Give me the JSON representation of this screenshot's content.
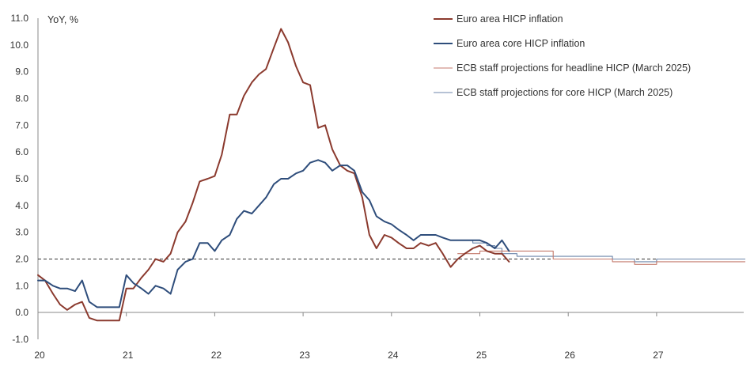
{
  "chart_data": {
    "type": "line",
    "ylabel": "YoY, %",
    "ylim": [
      -1.0,
      11.0
    ],
    "y_ticks": [
      "11.0",
      "10.0",
      "9.0",
      "8.0",
      "7.0",
      "6.0",
      "5.0",
      "4.0",
      "3.0",
      "2.0",
      "1.0",
      "0.0",
      "-1.0"
    ],
    "x_ticks": [
      "20",
      "21",
      "22",
      "23",
      "24",
      "25",
      "26",
      "27"
    ],
    "reference_line": {
      "value": 2.0,
      "style": "dashed"
    },
    "legend_position": "top-right",
    "series": [
      {
        "name": "Euro area HICP inflation",
        "color": "#8b3a2e",
        "x": [
          2020.0,
          2020.08,
          2020.17,
          2020.25,
          2020.33,
          2020.42,
          2020.5,
          2020.58,
          2020.67,
          2020.75,
          2020.83,
          2020.92,
          2021.0,
          2021.08,
          2021.17,
          2021.25,
          2021.33,
          2021.42,
          2021.5,
          2021.58,
          2021.67,
          2021.75,
          2021.83,
          2021.92,
          2022.0,
          2022.08,
          2022.17,
          2022.25,
          2022.33,
          2022.42,
          2022.5,
          2022.58,
          2022.67,
          2022.75,
          2022.83,
          2022.92,
          2023.0,
          2023.08,
          2023.17,
          2023.25,
          2023.33,
          2023.42,
          2023.5,
          2023.58,
          2023.67,
          2023.75,
          2023.83,
          2023.92,
          2024.0,
          2024.08,
          2024.17,
          2024.25,
          2024.33,
          2024.42,
          2024.5,
          2024.58,
          2024.67,
          2024.75,
          2024.83,
          2024.92,
          2025.0,
          2025.08,
          2025.17,
          2025.25,
          2025.33
        ],
        "values": [
          1.4,
          1.2,
          0.7,
          0.3,
          0.1,
          0.3,
          0.4,
          -0.2,
          -0.3,
          -0.3,
          -0.3,
          -0.3,
          0.9,
          0.9,
          1.3,
          1.6,
          2.0,
          1.9,
          2.2,
          3.0,
          3.4,
          4.1,
          4.9,
          5.0,
          5.1,
          5.9,
          7.4,
          7.4,
          8.1,
          8.6,
          8.9,
          9.1,
          9.9,
          10.6,
          10.1,
          9.2,
          8.6,
          8.5,
          6.9,
          7.0,
          6.1,
          5.5,
          5.3,
          5.2,
          4.3,
          2.9,
          2.4,
          2.9,
          2.8,
          2.6,
          2.4,
          2.4,
          2.6,
          2.5,
          2.6,
          2.2,
          1.7,
          2.0,
          2.2,
          2.4,
          2.5,
          2.3,
          2.2,
          2.2,
          1.9
        ]
      },
      {
        "name": "Euro area core HICP inflation",
        "color": "#2e4d7b",
        "x": [
          2020.0,
          2020.08,
          2020.17,
          2020.25,
          2020.33,
          2020.42,
          2020.5,
          2020.58,
          2020.67,
          2020.75,
          2020.83,
          2020.92,
          2021.0,
          2021.08,
          2021.17,
          2021.25,
          2021.33,
          2021.42,
          2021.5,
          2021.58,
          2021.67,
          2021.75,
          2021.83,
          2021.92,
          2022.0,
          2022.08,
          2022.17,
          2022.25,
          2022.33,
          2022.42,
          2022.5,
          2022.58,
          2022.67,
          2022.75,
          2022.83,
          2022.92,
          2023.0,
          2023.08,
          2023.17,
          2023.25,
          2023.33,
          2023.42,
          2023.5,
          2023.58,
          2023.67,
          2023.75,
          2023.83,
          2023.92,
          2024.0,
          2024.08,
          2024.17,
          2024.25,
          2024.33,
          2024.42,
          2024.5,
          2024.58,
          2024.67,
          2024.75,
          2024.83,
          2024.92,
          2025.0,
          2025.08,
          2025.17,
          2025.25,
          2025.33
        ],
        "values": [
          1.2,
          1.2,
          1.0,
          0.9,
          0.9,
          0.8,
          1.2,
          0.4,
          0.2,
          0.2,
          0.2,
          0.2,
          1.4,
          1.1,
          0.9,
          0.7,
          1.0,
          0.9,
          0.7,
          1.6,
          1.9,
          2.0,
          2.6,
          2.6,
          2.3,
          2.7,
          2.9,
          3.5,
          3.8,
          3.7,
          4.0,
          4.3,
          4.8,
          5.0,
          5.0,
          5.2,
          5.3,
          5.6,
          5.7,
          5.6,
          5.3,
          5.5,
          5.5,
          5.3,
          4.5,
          4.2,
          3.6,
          3.4,
          3.3,
          3.1,
          2.9,
          2.7,
          2.9,
          2.9,
          2.9,
          2.8,
          2.7,
          2.7,
          2.7,
          2.7,
          2.7,
          2.6,
          2.4,
          2.7,
          2.3
        ]
      },
      {
        "name": "ECB staff projections for headline HICP (March 2025)",
        "color": "#c47a6c",
        "x": [
          2024.75,
          2024.83,
          2024.92,
          2025.0,
          2025.08,
          2025.17,
          2025.25,
          2025.33,
          2025.42,
          2025.5,
          2025.58,
          2025.67,
          2025.75,
          2025.83,
          2025.92,
          2026.0,
          2026.08,
          2026.17,
          2026.25,
          2026.33,
          2026.42,
          2026.5,
          2026.58,
          2026.67,
          2026.75,
          2026.83,
          2026.92,
          2027.0,
          2027.08,
          2027.17,
          2027.25,
          2027.33,
          2027.42,
          2027.5,
          2027.58,
          2027.67,
          2027.75,
          2027.83,
          2027.92,
          2028.0
        ],
        "values": [
          2.2,
          2.2,
          2.2,
          2.3,
          2.3,
          2.3,
          2.3,
          2.3,
          2.3,
          2.3,
          2.3,
          2.3,
          2.3,
          2.0,
          2.0,
          2.0,
          2.0,
          2.0,
          2.0,
          2.0,
          2.0,
          1.9,
          1.9,
          1.9,
          1.8,
          1.8,
          1.8,
          1.9,
          1.9,
          1.9,
          1.9,
          1.9,
          1.9,
          1.9,
          1.9,
          1.9,
          1.9,
          1.9,
          1.9,
          1.9
        ]
      },
      {
        "name": "ECB staff projections for core HICP (March 2025)",
        "color": "#6c86ab",
        "x": [
          2024.75,
          2024.83,
          2024.92,
          2025.0,
          2025.08,
          2025.17,
          2025.25,
          2025.33,
          2025.42,
          2025.5,
          2025.58,
          2025.67,
          2025.75,
          2025.83,
          2025.92,
          2026.0,
          2026.08,
          2026.17,
          2026.25,
          2026.33,
          2026.42,
          2026.5,
          2026.58,
          2026.67,
          2026.75,
          2026.83,
          2026.92,
          2027.0,
          2027.08,
          2027.17,
          2027.25,
          2027.33,
          2027.42,
          2027.5,
          2027.58,
          2027.67,
          2027.75,
          2027.83,
          2027.92,
          2028.0
        ],
        "values": [
          2.7,
          2.7,
          2.6,
          2.6,
          2.5,
          2.4,
          2.2,
          2.2,
          2.1,
          2.1,
          2.1,
          2.1,
          2.1,
          2.1,
          2.1,
          2.1,
          2.1,
          2.1,
          2.1,
          2.1,
          2.1,
          2.0,
          2.0,
          2.0,
          1.9,
          1.9,
          1.9,
          2.0,
          2.0,
          2.0,
          2.0,
          2.0,
          2.0,
          2.0,
          2.0,
          2.0,
          2.0,
          2.0,
          2.0,
          2.0
        ]
      }
    ]
  }
}
